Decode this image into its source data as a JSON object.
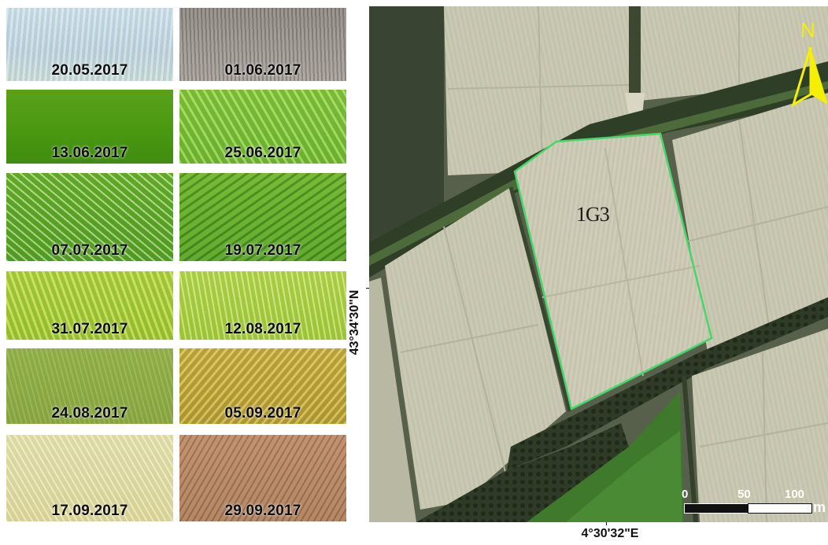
{
  "photo_dates": [
    "20.05.2017",
    "01.06.2017",
    "13.06.2017",
    "25.06.2017",
    "07.07.2017",
    "19.07.2017",
    "31.07.2017",
    "12.08.2017",
    "24.08.2017",
    "05.09.2017",
    "17.09.2017",
    "29.09.2017"
  ],
  "map": {
    "plot_id": "1G3",
    "north_label": "N",
    "latitude_label": "43°34'30\"N",
    "longitude_label": "4°30'32\"E",
    "scale_labels": [
      "0",
      "50",
      "100"
    ],
    "scale_unit": "m",
    "field_outline_color": "#46d66a",
    "north_arrow_color": "#f5ef00"
  }
}
